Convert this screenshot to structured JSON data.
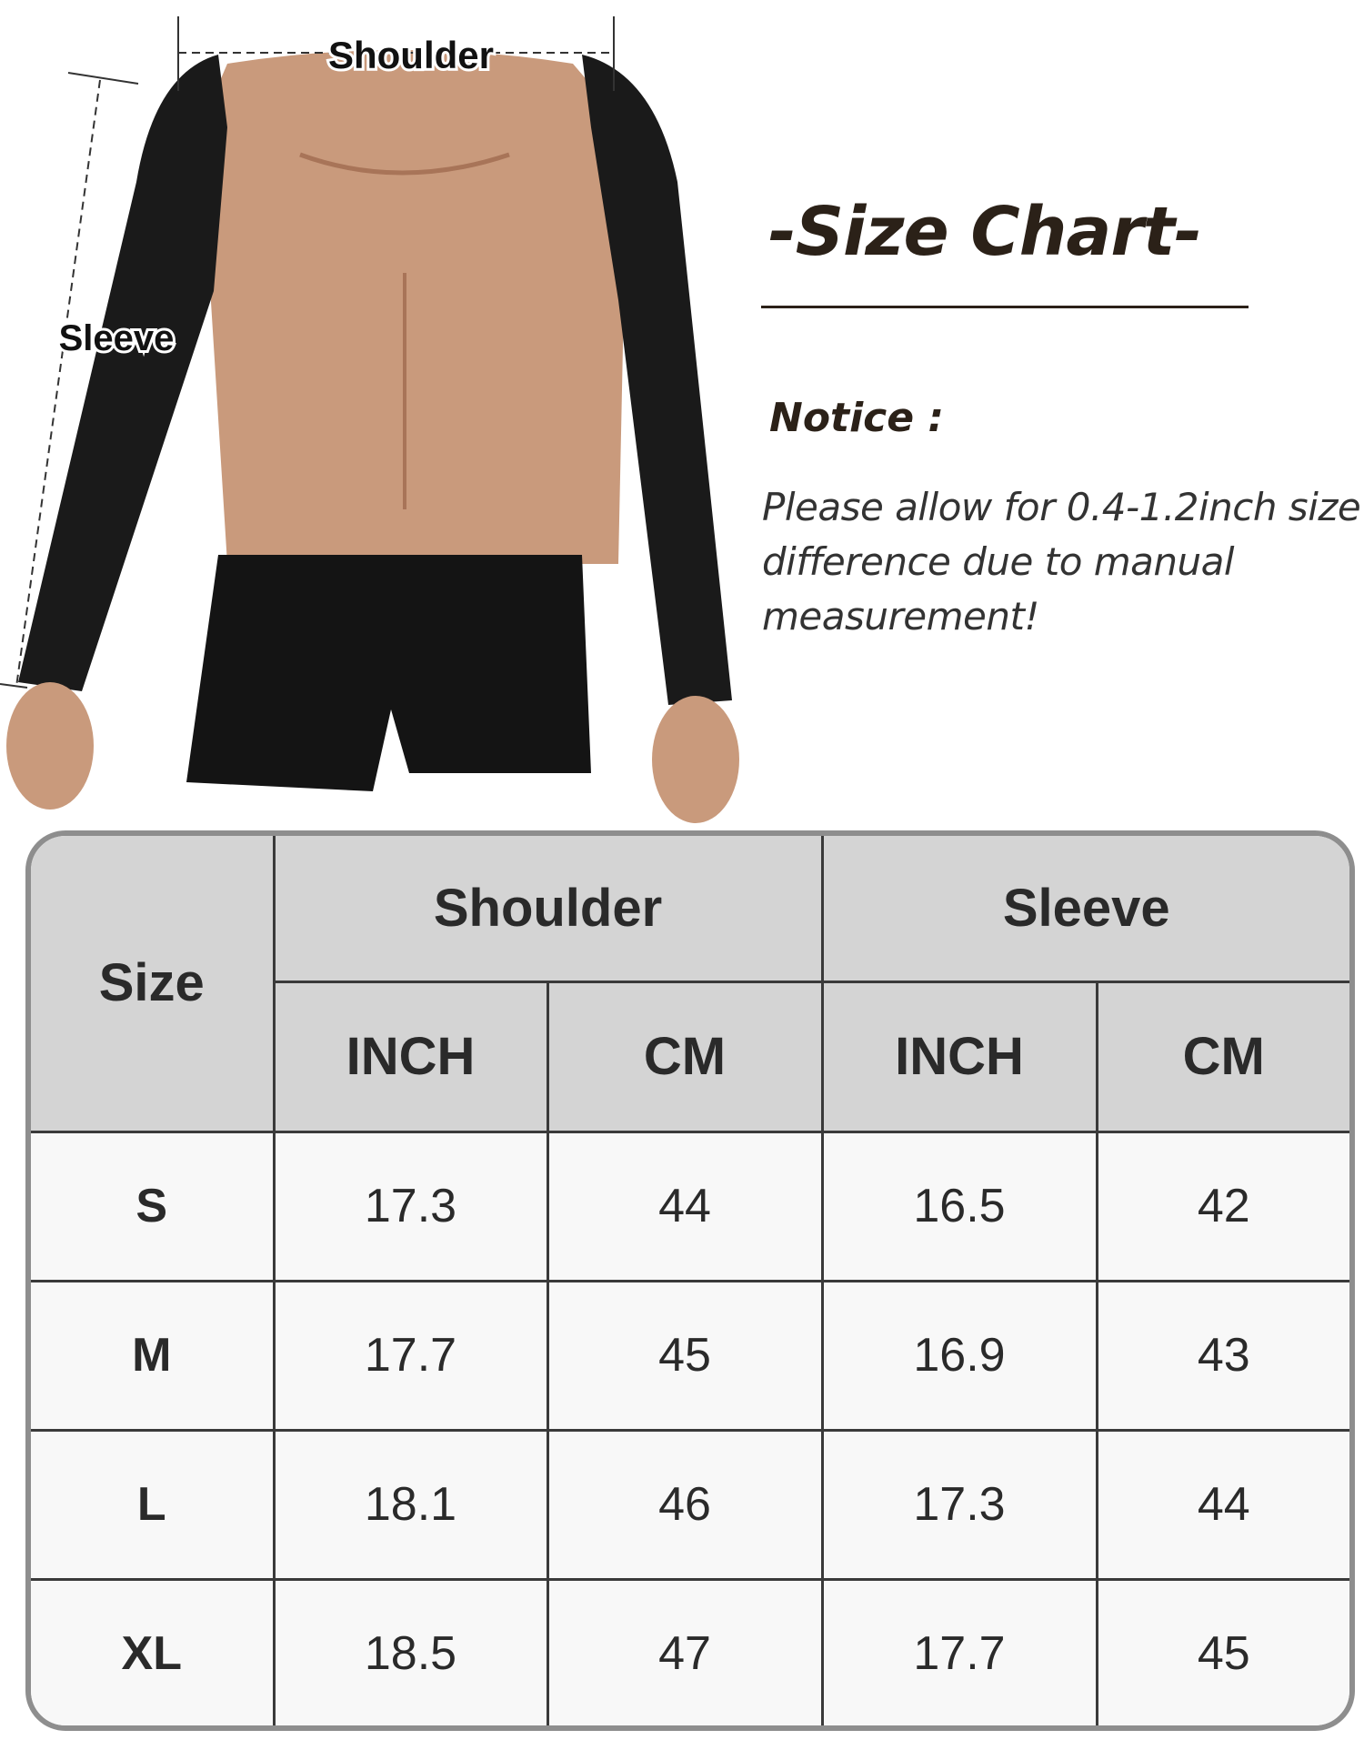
{
  "photo": {
    "shoulder_label": "Shoulder",
    "sleeve_label": "Sleeve"
  },
  "heading": {
    "title": "-Size Chart-",
    "notice_label": "Notice :",
    "notice_text": "Please allow for 0.4-1.2inch size difference due to manual measurement!"
  },
  "table": {
    "size_header": "Size",
    "groups": [
      "Shoulder",
      "Sleeve"
    ],
    "units": [
      "INCH",
      "CM",
      "INCH",
      "CM"
    ],
    "rows": [
      {
        "size": "S",
        "values": [
          "17.3",
          "44",
          "16.5",
          "42"
        ]
      },
      {
        "size": "M",
        "values": [
          "17.7",
          "45",
          "16.9",
          "43"
        ]
      },
      {
        "size": "L",
        "values": [
          "18.1",
          "46",
          "17.3",
          "44"
        ]
      },
      {
        "size": "XL",
        "values": [
          "18.5",
          "47",
          "17.7",
          "45"
        ]
      }
    ]
  },
  "colors": {
    "header_bg": "#d4d4d4",
    "body_bg": "#f8f8f8",
    "border": "#8e8e8e",
    "title": "#2b2118"
  }
}
